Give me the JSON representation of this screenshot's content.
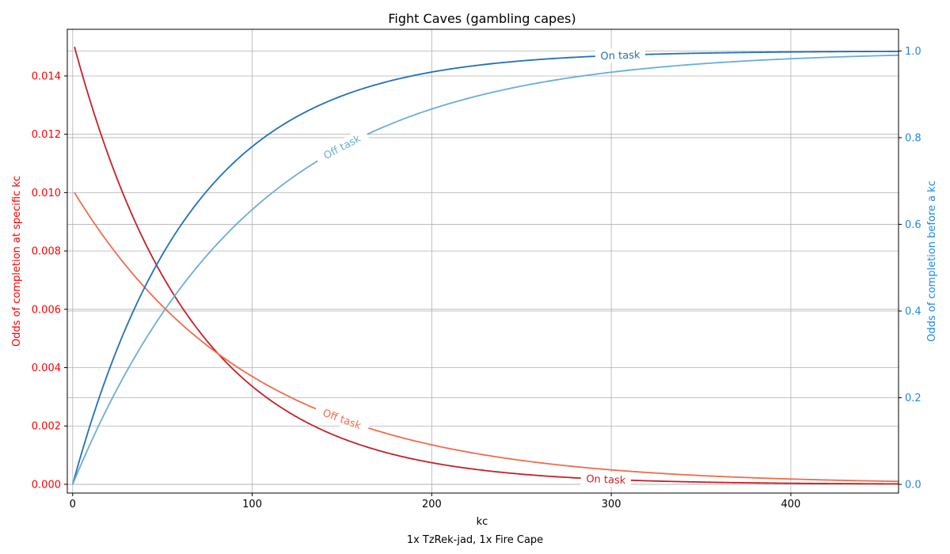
{
  "chart_data": {
    "type": "line",
    "title": "Fight Caves (gambling capes)",
    "xlabel": "kc",
    "footer": "1x TzRek-jad, 1x Fire Cape",
    "ylabel_left": "Odds of completion at specific kc",
    "ylabel_right": "Odds of completion before a kc",
    "xlim": [
      -3,
      460
    ],
    "ylim_left": [
      -0.0003,
      0.0156
    ],
    "ylim_right": [
      -0.02,
      1.05
    ],
    "x_ticks": [
      0,
      100,
      200,
      300,
      400
    ],
    "y_ticks_left": [
      "0.000",
      "0.002",
      "0.004",
      "0.006",
      "0.008",
      "0.010",
      "0.012",
      "0.014"
    ],
    "y_ticks_right": [
      "0.0",
      "0.2",
      "0.4",
      "0.6",
      "0.8",
      "1.0"
    ],
    "grid": true,
    "colors": {
      "left_axis": "#ff0000",
      "right_axis": "#1e88e5",
      "on_task_pmf": "#c62027",
      "off_task_pmf": "#f26b4a",
      "on_task_cdf": "#2171b5",
      "off_task_cdf": "#6aaed6"
    },
    "series": [
      {
        "name": "On task",
        "axis": "left",
        "kind": "pmf",
        "p": 0.015,
        "x_start": 1,
        "x_end": 460
      },
      {
        "name": "Off task",
        "axis": "left",
        "kind": "pmf",
        "p": 0.01,
        "x_start": 1,
        "x_end": 460
      },
      {
        "name": "On task",
        "axis": "right",
        "kind": "cdf",
        "p": 0.015,
        "x_start": 0,
        "x_end": 460
      },
      {
        "name": "Off task",
        "axis": "right",
        "kind": "cdf",
        "p": 0.01,
        "x_start": 0,
        "x_end": 460
      }
    ],
    "inline_labels": [
      {
        "text": "On task",
        "series": 0,
        "x": 297
      },
      {
        "text": "Off task",
        "series": 1,
        "x": 150
      },
      {
        "text": "On task",
        "series": 2,
        "x": 305
      },
      {
        "text": "Off task",
        "series": 3,
        "x": 150
      }
    ]
  }
}
